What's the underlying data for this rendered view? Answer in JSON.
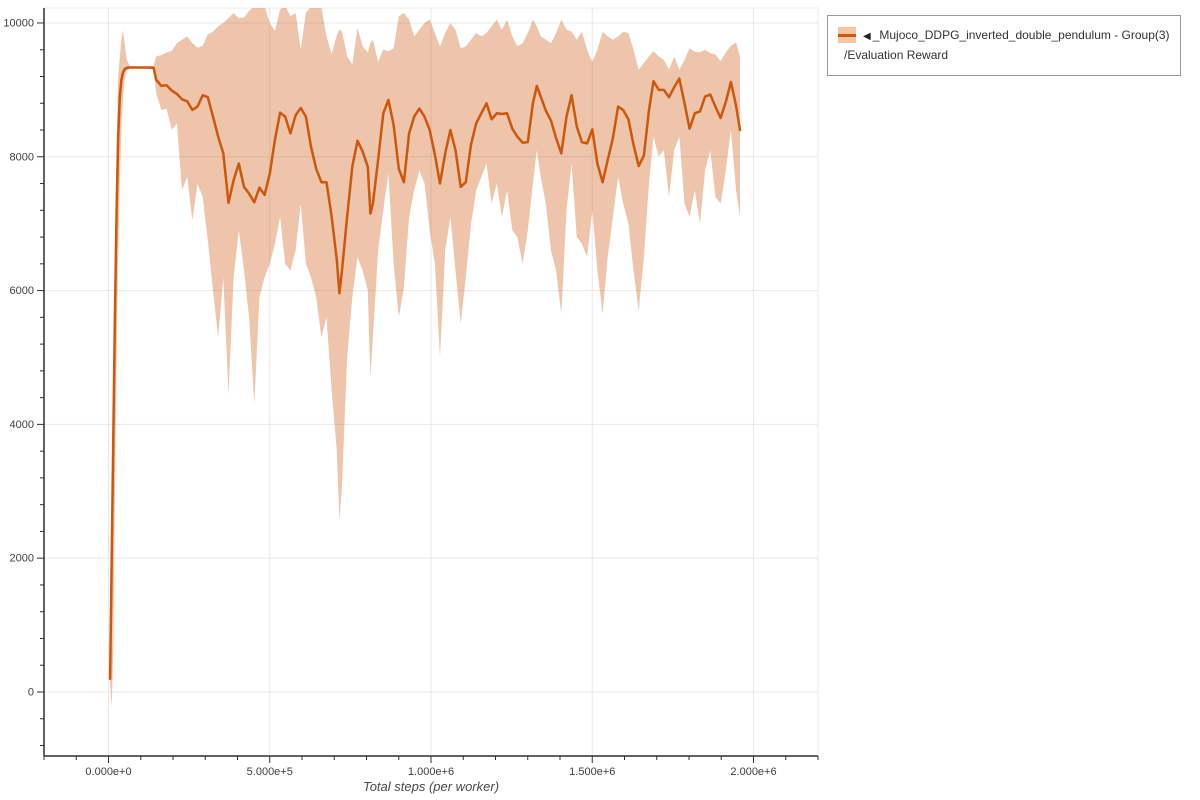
{
  "legend": {
    "marker": "◀",
    "series_name": "_Mujoco_DDPG_inverted_double_pendulum - Group(3)",
    "metric": "/Evaluation Reward"
  },
  "chart_data": {
    "type": "line",
    "title": "",
    "xlabel": "Total steps (per worker)",
    "ylabel": "",
    "grid": true,
    "legend_position": "top-right-outside",
    "colors": {
      "line": "#cd570c",
      "band_fill": "rgba(205,87,12,0.35)",
      "band_flat": "#f2c5a4",
      "grid": "#e8e8e8",
      "spine": "#2f2f2f",
      "tick_label": "#3f3f3f"
    },
    "x_axis": {
      "min": -200000,
      "max": 2200000,
      "major_ticks": [
        0,
        500000,
        1000000,
        1500000,
        2000000
      ],
      "major_tick_labels": [
        "0.000e+0",
        "5.000e+5",
        "1.000e+6",
        "1.500e+6",
        "2.000e+6"
      ],
      "minor_step": 100000
    },
    "y_axis": {
      "min": -957,
      "max": 10224,
      "major_ticks": [
        0,
        2000,
        4000,
        6000,
        8000,
        10000
      ],
      "minor_step": 400,
      "minor_min": -800,
      "minor_max": 10000
    },
    "series": [
      {
        "name": "_Mujoco_DDPG_inverted_double_pendulum - Group(3) /Evaluation Reward",
        "point_format": [
          "steps",
          "lower",
          "mean",
          "upper"
        ],
        "points": [
          [
            5000,
            140,
            195,
            260
          ],
          [
            10000,
            -230,
            2000,
            2600
          ],
          [
            15000,
            600,
            3800,
            4300
          ],
          [
            20000,
            2800,
            5600,
            6200
          ],
          [
            25000,
            5000,
            7200,
            8200
          ],
          [
            30000,
            6500,
            8300,
            9200
          ],
          [
            35000,
            7600,
            8900,
            9500
          ],
          [
            40000,
            8400,
            9150,
            9750
          ],
          [
            45000,
            8900,
            9260,
            9900
          ],
          [
            50000,
            9150,
            9310,
            9700
          ],
          [
            57000,
            9290,
            9330,
            9450
          ],
          [
            65000,
            9320,
            9335,
            9360
          ],
          [
            80000,
            9325,
            9335,
            9345
          ],
          [
            100000,
            9325,
            9335,
            9345
          ],
          [
            120000,
            9325,
            9335,
            9345
          ],
          [
            140000,
            9310,
            9330,
            9360
          ],
          [
            148000,
            8950,
            9150,
            9500
          ],
          [
            164000,
            8700,
            9060,
            9520
          ],
          [
            180000,
            8720,
            9070,
            9560
          ],
          [
            196000,
            8400,
            8990,
            9580
          ],
          [
            212000,
            8500,
            8940,
            9700
          ],
          [
            228000,
            7500,
            8860,
            9750
          ],
          [
            244000,
            7700,
            8830,
            9800
          ],
          [
            260000,
            7050,
            8700,
            9700
          ],
          [
            276000,
            7600,
            8750,
            9630
          ],
          [
            292000,
            7400,
            8920,
            9660
          ],
          [
            308000,
            6750,
            8890,
            9830
          ],
          [
            324000,
            6000,
            8600,
            9870
          ],
          [
            340000,
            5300,
            8300,
            9950
          ],
          [
            356000,
            6200,
            8050,
            10000
          ],
          [
            372000,
            4450,
            7310,
            10075
          ],
          [
            388000,
            6200,
            7650,
            10150
          ],
          [
            404000,
            6900,
            7900,
            10075
          ],
          [
            420000,
            6300,
            7550,
            10080
          ],
          [
            436000,
            5600,
            7450,
            10180
          ],
          [
            452000,
            4300,
            7320,
            10250
          ],
          [
            468000,
            5900,
            7540,
            10260
          ],
          [
            484000,
            6200,
            7430,
            10250
          ],
          [
            500000,
            6400,
            7750,
            10000
          ],
          [
            516000,
            6700,
            8250,
            9880
          ],
          [
            532000,
            7100,
            8660,
            10200
          ],
          [
            548000,
            6400,
            8600,
            10260
          ],
          [
            564000,
            6300,
            8350,
            10100
          ],
          [
            580000,
            6600,
            8620,
            10150
          ],
          [
            596000,
            7300,
            8730,
            9600
          ],
          [
            612000,
            6400,
            8600,
            10150
          ],
          [
            628000,
            6200,
            8150,
            10250
          ],
          [
            644000,
            5900,
            7820,
            10260
          ],
          [
            660000,
            5300,
            7620,
            10230
          ],
          [
            676000,
            5600,
            7620,
            9800
          ],
          [
            692000,
            4500,
            7100,
            9530
          ],
          [
            708000,
            3600,
            6460,
            9820
          ],
          [
            716000,
            2560,
            5960,
            9900
          ],
          [
            724000,
            3100,
            6300,
            9880
          ],
          [
            740000,
            5000,
            7100,
            9500
          ],
          [
            756000,
            5900,
            7850,
            9380
          ],
          [
            772000,
            6500,
            8240,
            9930
          ],
          [
            788000,
            6300,
            8080,
            9650
          ],
          [
            804000,
            6000,
            7850,
            9560
          ],
          [
            812000,
            4700,
            7150,
            9700
          ],
          [
            820000,
            5300,
            7300,
            9750
          ],
          [
            836000,
            6600,
            7950,
            9420
          ],
          [
            852000,
            7200,
            8650,
            9600
          ],
          [
            868000,
            7750,
            8850,
            9580
          ],
          [
            884000,
            6400,
            8480,
            9620
          ],
          [
            900000,
            5600,
            7820,
            10100
          ],
          [
            916000,
            6050,
            7620,
            10150
          ],
          [
            932000,
            7100,
            8350,
            10050
          ],
          [
            948000,
            7500,
            8600,
            9800
          ],
          [
            964000,
            7800,
            8720,
            9900
          ],
          [
            980000,
            7600,
            8600,
            10000
          ],
          [
            996000,
            6900,
            8400,
            10050
          ],
          [
            1012000,
            6400,
            8030,
            9850
          ],
          [
            1028000,
            5000,
            7600,
            9650
          ],
          [
            1044000,
            6600,
            8050,
            9850
          ],
          [
            1060000,
            7100,
            8400,
            10000
          ],
          [
            1076000,
            6300,
            8100,
            9900
          ],
          [
            1092000,
            5500,
            7550,
            9620
          ],
          [
            1108000,
            6200,
            7620,
            9650
          ],
          [
            1124000,
            7000,
            8180,
            9750
          ],
          [
            1140000,
            7500,
            8500,
            9850
          ],
          [
            1156000,
            7700,
            8650,
            9800
          ],
          [
            1172000,
            7900,
            8800,
            9850
          ],
          [
            1188000,
            7300,
            8560,
            9950
          ],
          [
            1204000,
            7600,
            8650,
            10050
          ],
          [
            1220000,
            7100,
            8640,
            9900
          ],
          [
            1236000,
            7500,
            8650,
            10050
          ],
          [
            1252000,
            6900,
            8420,
            9800
          ],
          [
            1268000,
            6800,
            8300,
            9650
          ],
          [
            1284000,
            6400,
            8210,
            9700
          ],
          [
            1300000,
            6900,
            8220,
            9850
          ],
          [
            1316000,
            7600,
            8800,
            10050
          ],
          [
            1328000,
            8100,
            9060,
            9950
          ],
          [
            1340000,
            7700,
            8900,
            9800
          ],
          [
            1356000,
            7300,
            8690,
            9750
          ],
          [
            1372000,
            6600,
            8540,
            9700
          ],
          [
            1388000,
            6300,
            8280,
            9850
          ],
          [
            1404000,
            5650,
            8050,
            10050
          ],
          [
            1420000,
            7200,
            8600,
            9900
          ],
          [
            1436000,
            7900,
            8920,
            9870
          ],
          [
            1452000,
            6800,
            8450,
            9750
          ],
          [
            1468000,
            6700,
            8220,
            9870
          ],
          [
            1484000,
            6500,
            8200,
            9600
          ],
          [
            1500000,
            7200,
            8410,
            9420
          ],
          [
            1516000,
            6300,
            7900,
            9600
          ],
          [
            1532000,
            5650,
            7620,
            9870
          ],
          [
            1548000,
            6500,
            7950,
            9800
          ],
          [
            1564000,
            7100,
            8280,
            9750
          ],
          [
            1580000,
            7700,
            8750,
            9800
          ],
          [
            1596000,
            7300,
            8700,
            9870
          ],
          [
            1612000,
            7000,
            8560,
            9850
          ],
          [
            1628000,
            6300,
            8180,
            9600
          ],
          [
            1644000,
            5700,
            7860,
            9300
          ],
          [
            1660000,
            6500,
            8020,
            9400
          ],
          [
            1676000,
            7600,
            8700,
            9500
          ],
          [
            1690000,
            8300,
            9130,
            9580
          ],
          [
            1706000,
            8000,
            9000,
            9500
          ],
          [
            1722000,
            8100,
            9000,
            9450
          ],
          [
            1738000,
            7400,
            8890,
            9300
          ],
          [
            1754000,
            8100,
            9040,
            9500
          ],
          [
            1770000,
            8300,
            9170,
            9300
          ],
          [
            1786000,
            7300,
            8800,
            9450
          ],
          [
            1802000,
            7100,
            8420,
            9620
          ],
          [
            1818000,
            7500,
            8650,
            9570
          ],
          [
            1834000,
            7000,
            8680,
            9560
          ],
          [
            1850000,
            7800,
            8900,
            9600
          ],
          [
            1866000,
            8100,
            8930,
            9550
          ],
          [
            1882000,
            7400,
            8750,
            9530
          ],
          [
            1898000,
            7300,
            8580,
            9430
          ],
          [
            1914000,
            7800,
            8820,
            9560
          ],
          [
            1930000,
            8400,
            9120,
            9660
          ],
          [
            1946000,
            7500,
            8760,
            9710
          ],
          [
            1958000,
            7100,
            8400,
            9500
          ]
        ]
      }
    ]
  }
}
